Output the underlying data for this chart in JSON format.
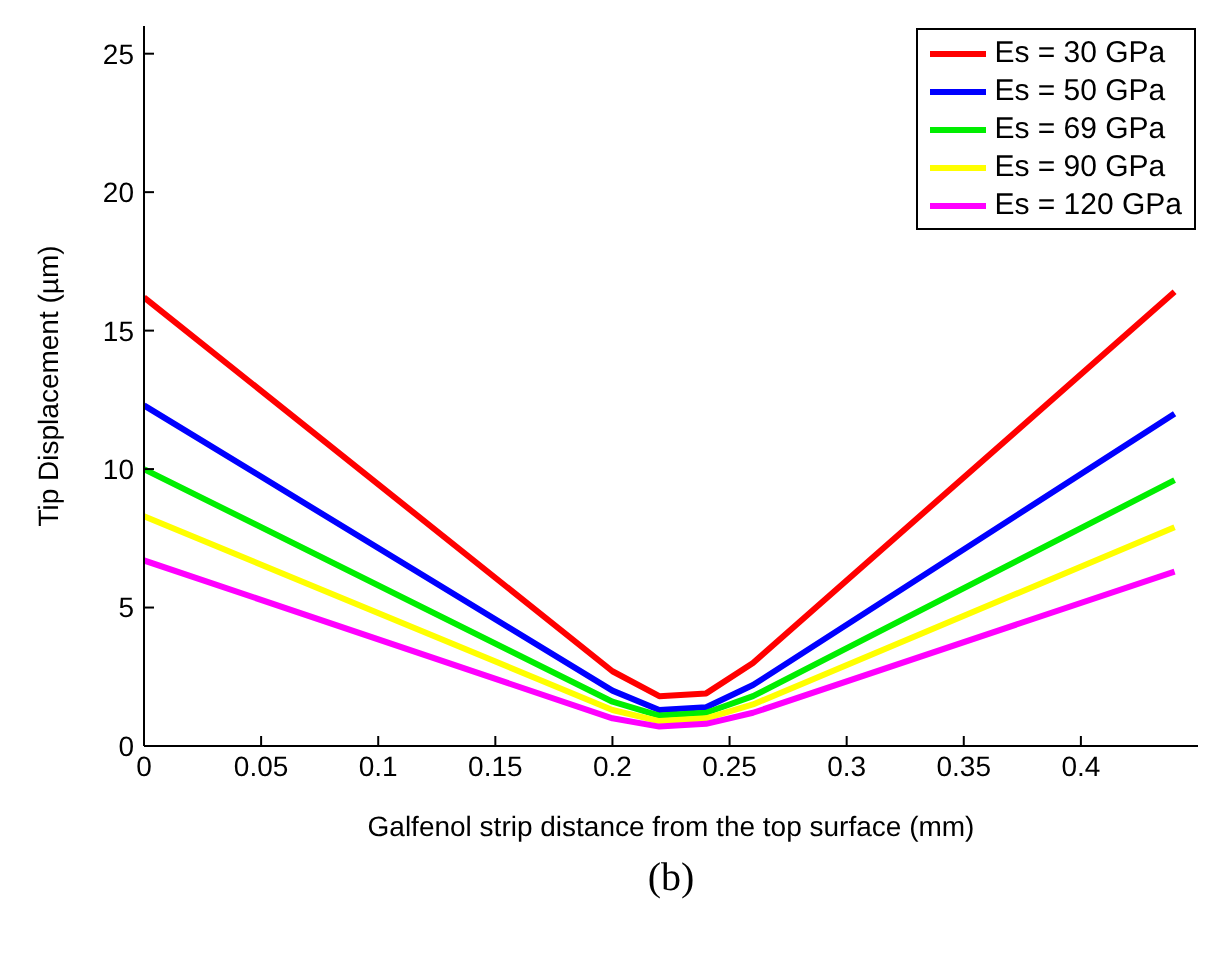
{
  "chart_data": {
    "type": "line",
    "xlabel": "Galfenol strip distance from the top surface (mm)",
    "ylabel": "Tip Displacement (µm)",
    "annotations": [
      "(b)"
    ],
    "x": [
      0,
      0.2,
      0.22,
      0.24,
      0.26,
      0.44
    ],
    "series": [
      {
        "name": "Es = 30 GPa",
        "color": "#ff0000",
        "values": [
          16.2,
          2.7,
          1.8,
          1.9,
          3.0,
          16.4
        ]
      },
      {
        "name": "Es = 50 GPa",
        "color": "#0000ff",
        "values": [
          12.3,
          2.0,
          1.3,
          1.4,
          2.2,
          12.0
        ]
      },
      {
        "name": "Es = 69 GPa",
        "color": "#00ee00",
        "values": [
          10.0,
          1.6,
          1.1,
          1.2,
          1.8,
          9.6
        ]
      },
      {
        "name": "Es = 90 GPa",
        "color": "#ffff00",
        "values": [
          8.3,
          1.3,
          0.9,
          1.0,
          1.5,
          7.9
        ]
      },
      {
        "name": "Es = 120 GPa",
        "color": "#ff00ff",
        "values": [
          6.7,
          1.0,
          0.7,
          0.8,
          1.2,
          6.3
        ]
      }
    ],
    "xlim": [
      0,
      0.45
    ],
    "xticks": [
      0,
      0.05,
      0.1,
      0.15,
      0.2,
      0.25,
      0.3,
      0.35,
      0.4
    ],
    "ylim": [
      0,
      26
    ],
    "yticks": [
      0,
      5,
      10,
      15,
      20,
      25
    ],
    "grid": false,
    "legend": "top right",
    "line_style": "solid",
    "marker": "none"
  }
}
